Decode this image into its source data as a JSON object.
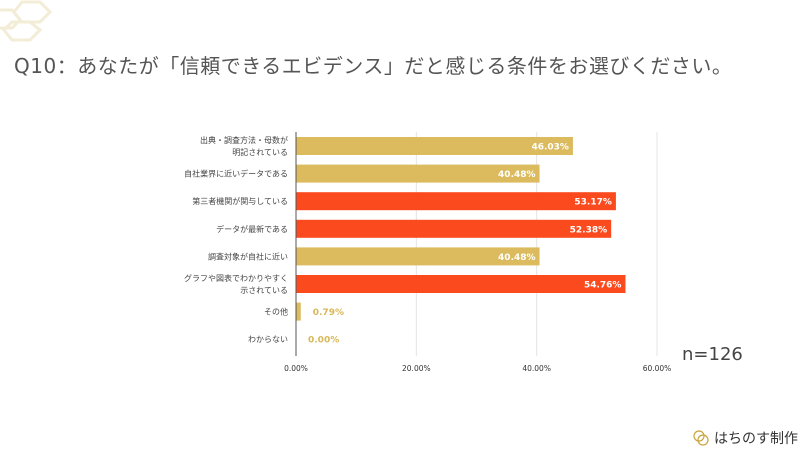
{
  "title": "Q10：あなたが「信頼できるエビデンス」だと感じる条件をお選びください。",
  "sample_size": "n=126",
  "credit": "はちのす制作",
  "colors": {
    "gold": "#dbbb5d",
    "red": "#fb4a1e",
    "gold_label": "#d9b85a"
  },
  "chart_data": {
    "type": "bar",
    "orientation": "horizontal",
    "categories": [
      [
        "出典・調査方法・母数が",
        "明記されている"
      ],
      [
        "自社業界に近いデータである"
      ],
      [
        "第三者機関が関与している"
      ],
      [
        "データが最新である"
      ],
      [
        "調査対象が自社に近い"
      ],
      [
        "グラフや図表でわかりやすく",
        "示されている"
      ],
      [
        "その他"
      ],
      [
        "わからない"
      ]
    ],
    "values": [
      46.03,
      40.48,
      53.17,
      52.38,
      40.48,
      54.76,
      0.79,
      0.0
    ],
    "value_labels": [
      "46.03%",
      "40.48%",
      "53.17%",
      "52.38%",
      "40.48%",
      "54.76%",
      "0.79%",
      "0.00%"
    ],
    "highlight": [
      false,
      false,
      true,
      true,
      false,
      true,
      false,
      false
    ],
    "xticks": [
      "0.00%",
      "20.00%",
      "40.00%",
      "60.00%"
    ],
    "xlim": [
      0,
      60
    ],
    "grid": true
  }
}
